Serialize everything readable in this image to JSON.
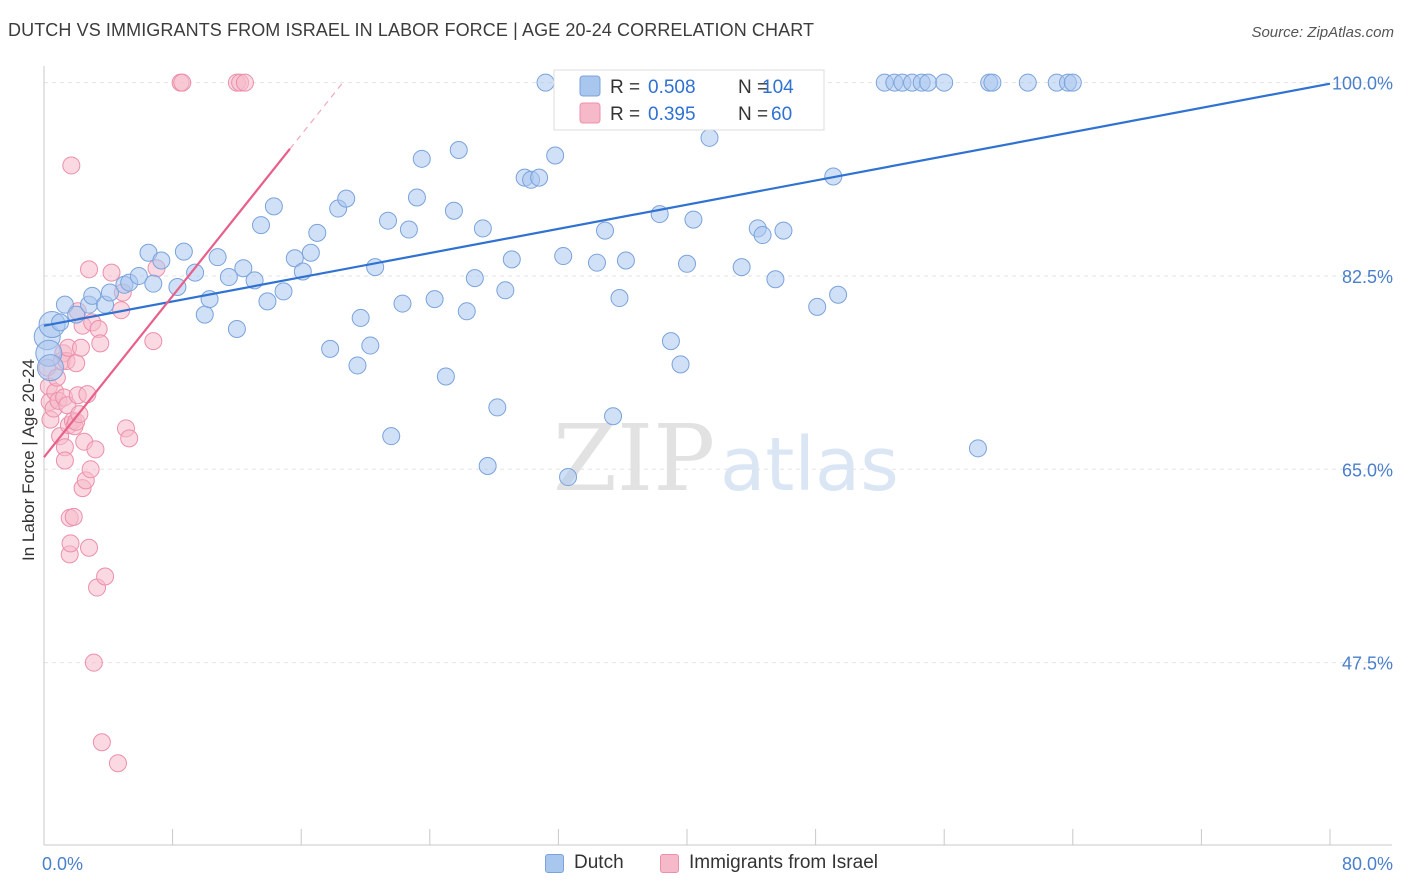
{
  "title": "DUTCH VS IMMIGRANTS FROM ISRAEL IN LABOR FORCE | AGE 20-24 CORRELATION CHART",
  "source": "Source: ZipAtlas.com",
  "watermark": {
    "zip": "ZIP",
    "atlas": "atlas"
  },
  "colors": {
    "blue_fill": "#a9c6ee",
    "blue_stroke": "#7aa3dc",
    "blue_line": "#2f72d1",
    "pink_fill": "#f6b9ca",
    "pink_stroke": "#ec8fab",
    "pink_line": "#e8608a",
    "axis_label": "#4a7fcc",
    "grid": "#e3e3e3"
  },
  "chart_data": {
    "type": "scatter",
    "title": "DUTCH VS IMMIGRANTS FROM ISRAEL IN LABOR FORCE | AGE 20-24 CORRELATION CHART",
    "xlabel": "",
    "ylabel": "In Labor Force | Age 20-24",
    "xlim": [
      0,
      80
    ],
    "ylim": [
      31,
      101.5
    ],
    "x_tick_labels": {
      "left": "0.0%",
      "right": "80.0%"
    },
    "y_ticks": [
      {
        "value": 100.0,
        "label": "100.0%"
      },
      {
        "value": 82.5,
        "label": "82.5%"
      },
      {
        "value": 65.0,
        "label": "65.0%"
      },
      {
        "value": 47.5,
        "label": "47.5%"
      }
    ],
    "legend": [
      {
        "name": "Dutch",
        "r_label": "R =",
        "r": "0.508",
        "n_label": "N =",
        "n": "104"
      },
      {
        "name": "Immigrants from Israel",
        "r_label": "R =",
        "r": "0.395",
        "n_label": "N =",
        "n": "60"
      }
    ],
    "series": [
      {
        "name": "Dutch",
        "color": "#a9c6ee",
        "trend": {
          "x": [
            0,
            80
          ],
          "y": [
            78.0,
            99.9
          ]
        },
        "points": [
          [
            0.2,
            77.0
          ],
          [
            0.3,
            75.5
          ],
          [
            0.4,
            74.2
          ],
          [
            0.5,
            78.1
          ],
          [
            1.0,
            78.3
          ],
          [
            1.3,
            79.9
          ],
          [
            2.0,
            79.0
          ],
          [
            2.8,
            79.9
          ],
          [
            3.0,
            80.7
          ],
          [
            3.8,
            79.9
          ],
          [
            4.1,
            81.0
          ],
          [
            5.0,
            81.7
          ],
          [
            5.3,
            81.9
          ],
          [
            5.9,
            82.5
          ],
          [
            6.5,
            84.6
          ],
          [
            6.8,
            81.8
          ],
          [
            7.3,
            83.9
          ],
          [
            8.3,
            81.5
          ],
          [
            8.7,
            84.7
          ],
          [
            9.4,
            82.8
          ],
          [
            10.0,
            79.0
          ],
          [
            10.3,
            80.4
          ],
          [
            10.8,
            84.2
          ],
          [
            11.5,
            82.4
          ],
          [
            12.0,
            77.7
          ],
          [
            12.4,
            83.2
          ],
          [
            13.1,
            82.1
          ],
          [
            13.5,
            87.1
          ],
          [
            13.9,
            80.2
          ],
          [
            14.3,
            88.8
          ],
          [
            14.9,
            81.1
          ],
          [
            15.6,
            84.1
          ],
          [
            16.1,
            82.9
          ],
          [
            16.6,
            84.6
          ],
          [
            17.0,
            86.4
          ],
          [
            17.8,
            75.9
          ],
          [
            18.3,
            88.6
          ],
          [
            18.8,
            89.5
          ],
          [
            19.5,
            74.4
          ],
          [
            19.7,
            78.7
          ],
          [
            20.3,
            76.2
          ],
          [
            20.6,
            83.3
          ],
          [
            21.4,
            87.5
          ],
          [
            21.6,
            68.0
          ],
          [
            22.3,
            80.0
          ],
          [
            22.7,
            86.7
          ],
          [
            23.2,
            89.6
          ],
          [
            23.5,
            93.1
          ],
          [
            24.3,
            80.4
          ],
          [
            25.0,
            73.4
          ],
          [
            25.5,
            88.4
          ],
          [
            25.8,
            93.9
          ],
          [
            26.3,
            79.3
          ],
          [
            26.8,
            82.3
          ],
          [
            27.3,
            86.8
          ],
          [
            27.6,
            65.3
          ],
          [
            28.2,
            70.6
          ],
          [
            28.7,
            81.2
          ],
          [
            29.1,
            84.0
          ],
          [
            29.9,
            91.4
          ],
          [
            30.3,
            91.2
          ],
          [
            30.8,
            91.4
          ],
          [
            31.2,
            100.0
          ],
          [
            31.8,
            93.4
          ],
          [
            32.3,
            84.3
          ],
          [
            32.6,
            64.3
          ],
          [
            33.0,
            100.0
          ],
          [
            34.0,
            100.0
          ],
          [
            34.4,
            83.7
          ],
          [
            34.9,
            86.6
          ],
          [
            35.4,
            69.8
          ],
          [
            35.8,
            80.5
          ],
          [
            36.2,
            83.9
          ],
          [
            37.0,
            100.0
          ],
          [
            38.3,
            88.1
          ],
          [
            39.0,
            76.6
          ],
          [
            39.6,
            74.5
          ],
          [
            40.0,
            83.6
          ],
          [
            40.4,
            87.6
          ],
          [
            41.4,
            95.0
          ],
          [
            41.8,
            100.0
          ],
          [
            43.4,
            83.3
          ],
          [
            44.4,
            86.8
          ],
          [
            44.7,
            86.2
          ],
          [
            45.5,
            82.2
          ],
          [
            46.0,
            86.6
          ],
          [
            47.8,
            100.0
          ],
          [
            48.1,
            79.7
          ],
          [
            49.1,
            91.5
          ],
          [
            49.4,
            80.8
          ],
          [
            52.3,
            100.0
          ],
          [
            52.9,
            100.0
          ],
          [
            53.4,
            100.0
          ],
          [
            54.0,
            100.0
          ],
          [
            54.6,
            100.0
          ],
          [
            55.0,
            100.0
          ],
          [
            56.0,
            100.0
          ],
          [
            58.1,
            66.9
          ],
          [
            58.8,
            100.0
          ],
          [
            59.0,
            100.0
          ],
          [
            61.2,
            100.0
          ],
          [
            63.0,
            100.0
          ],
          [
            63.7,
            100.0
          ],
          [
            64.0,
            100.0
          ]
        ]
      },
      {
        "name": "Immigrants from Israel",
        "color": "#f6b9ca",
        "trend": {
          "x": [
            0,
            15.3
          ],
          "y": [
            66.1,
            94.0
          ]
        },
        "points": [
          [
            0.2,
            74.2
          ],
          [
            0.3,
            72.5
          ],
          [
            0.35,
            71.1
          ],
          [
            0.4,
            69.5
          ],
          [
            0.6,
            70.5
          ],
          [
            0.7,
            72.0
          ],
          [
            0.8,
            73.3
          ],
          [
            0.9,
            71.2
          ],
          [
            1.0,
            68.0
          ],
          [
            1.1,
            74.8
          ],
          [
            1.2,
            75.5
          ],
          [
            1.25,
            71.5
          ],
          [
            1.3,
            67.0
          ],
          [
            1.3,
            65.8
          ],
          [
            1.4,
            74.8
          ],
          [
            1.45,
            70.8
          ],
          [
            1.5,
            76.0
          ],
          [
            1.55,
            69.0
          ],
          [
            1.6,
            57.3
          ],
          [
            1.6,
            60.6
          ],
          [
            1.65,
            58.3
          ],
          [
            1.7,
            92.5
          ],
          [
            1.8,
            69.4
          ],
          [
            1.85,
            60.7
          ],
          [
            1.9,
            68.9
          ],
          [
            2.0,
            69.3
          ],
          [
            2.0,
            74.6
          ],
          [
            2.1,
            71.7
          ],
          [
            2.1,
            79.3
          ],
          [
            2.2,
            70.0
          ],
          [
            2.3,
            76.0
          ],
          [
            2.4,
            63.3
          ],
          [
            2.4,
            78.0
          ],
          [
            2.5,
            67.5
          ],
          [
            2.6,
            64.0
          ],
          [
            2.7,
            71.8
          ],
          [
            2.8,
            57.9
          ],
          [
            2.8,
            83.1
          ],
          [
            2.9,
            65.0
          ],
          [
            3.0,
            78.3
          ],
          [
            3.1,
            47.5
          ],
          [
            3.2,
            66.8
          ],
          [
            3.3,
            54.3
          ],
          [
            3.4,
            77.7
          ],
          [
            3.5,
            76.4
          ],
          [
            3.6,
            40.3
          ],
          [
            3.8,
            55.3
          ],
          [
            4.2,
            82.8
          ],
          [
            4.6,
            38.4
          ],
          [
            4.8,
            79.4
          ],
          [
            5.1,
            68.7
          ],
          [
            5.3,
            67.8
          ],
          [
            6.8,
            76.6
          ],
          [
            7.0,
            83.2
          ],
          [
            8.5,
            100.0
          ],
          [
            8.6,
            100.0
          ],
          [
            12.0,
            100.0
          ],
          [
            12.2,
            100.0
          ],
          [
            12.5,
            100.0
          ],
          [
            4.9,
            81.0
          ]
        ]
      }
    ]
  }
}
